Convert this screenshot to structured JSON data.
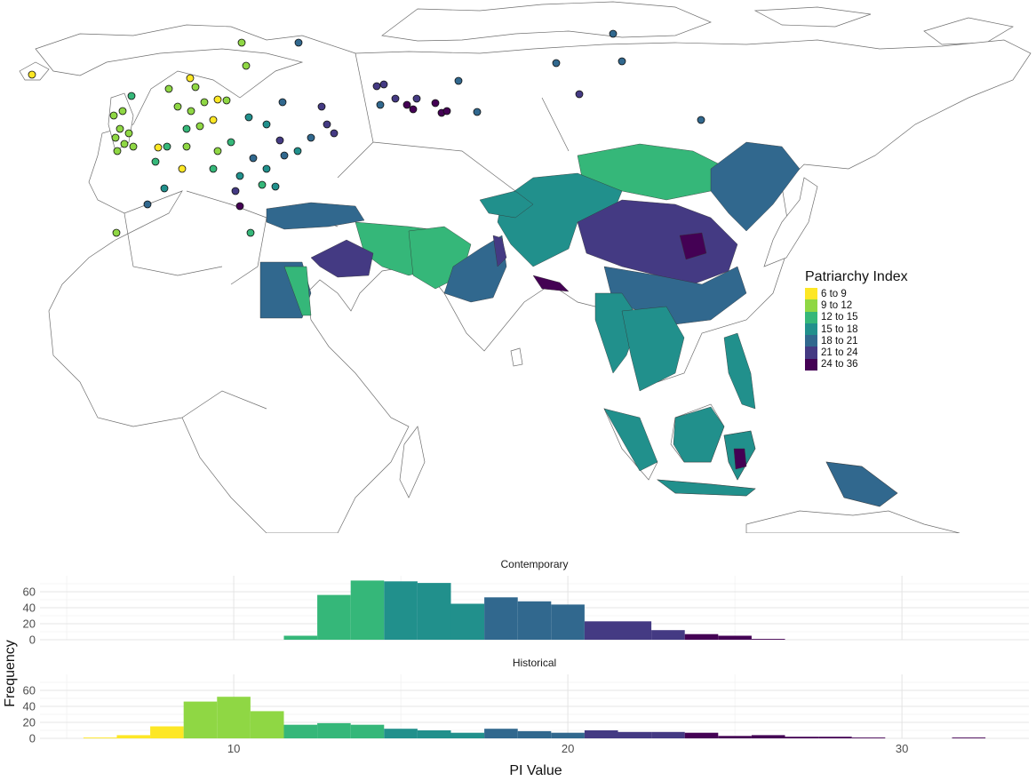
{
  "legend": {
    "title": "Patriarchy Index",
    "bins": [
      {
        "label": "6 to 9",
        "color": "#FDE725"
      },
      {
        "label": "9 to 12",
        "color": "#8FD744"
      },
      {
        "label": "12 to 15",
        "color": "#35B779"
      },
      {
        "label": "15 to 18",
        "color": "#21908C"
      },
      {
        "label": "18 to 21",
        "color": "#31688E"
      },
      {
        "label": "21 to 24",
        "color": "#443A83"
      },
      {
        "label": "24 to 36",
        "color": "#440154"
      }
    ]
  },
  "chart_data": {
    "type": "bar",
    "panels": [
      {
        "name": "Contemporary",
        "bins": [
          {
            "x0": 11.5,
            "x1": 12.5,
            "count": 5,
            "bin": 2
          },
          {
            "x0": 12.5,
            "x1": 13.5,
            "count": 56,
            "bin": 2
          },
          {
            "x0": 13.5,
            "x1": 14.5,
            "count": 74,
            "bin": 2
          },
          {
            "x0": 14.5,
            "x1": 15.5,
            "count": 73,
            "bin": 3
          },
          {
            "x0": 15.5,
            "x1": 16.5,
            "count": 71,
            "bin": 3
          },
          {
            "x0": 16.5,
            "x1": 17.5,
            "count": 45,
            "bin": 3
          },
          {
            "x0": 17.5,
            "x1": 18.5,
            "count": 53,
            "bin": 4
          },
          {
            "x0": 18.5,
            "x1": 19.5,
            "count": 48,
            "bin": 4
          },
          {
            "x0": 19.5,
            "x1": 20.5,
            "count": 44,
            "bin": 4
          },
          {
            "x0": 20.5,
            "x1": 21.5,
            "count": 23,
            "bin": 5
          },
          {
            "x0": 21.5,
            "x1": 22.5,
            "count": 23,
            "bin": 5
          },
          {
            "x0": 22.5,
            "x1": 23.5,
            "count": 12,
            "bin": 5
          },
          {
            "x0": 23.5,
            "x1": 24.5,
            "count": 7,
            "bin": 6
          },
          {
            "x0": 24.5,
            "x1": 25.5,
            "count": 5,
            "bin": 6
          },
          {
            "x0": 25.5,
            "x1": 26.5,
            "count": 1,
            "bin": 6
          }
        ]
      },
      {
        "name": "Historical",
        "bins": [
          {
            "x0": 5.5,
            "x1": 6.5,
            "count": 1,
            "bin": 0
          },
          {
            "x0": 6.5,
            "x1": 7.5,
            "count": 4,
            "bin": 0
          },
          {
            "x0": 7.5,
            "x1": 8.5,
            "count": 15,
            "bin": 0
          },
          {
            "x0": 8.5,
            "x1": 9.5,
            "count": 46,
            "bin": 1
          },
          {
            "x0": 9.5,
            "x1": 10.5,
            "count": 52,
            "bin": 1
          },
          {
            "x0": 10.5,
            "x1": 11.5,
            "count": 34,
            "bin": 1
          },
          {
            "x0": 11.5,
            "x1": 12.5,
            "count": 17,
            "bin": 2
          },
          {
            "x0": 12.5,
            "x1": 13.5,
            "count": 19,
            "bin": 2
          },
          {
            "x0": 13.5,
            "x1": 14.5,
            "count": 17,
            "bin": 2
          },
          {
            "x0": 14.5,
            "x1": 15.5,
            "count": 12,
            "bin": 3
          },
          {
            "x0": 15.5,
            "x1": 16.5,
            "count": 10,
            "bin": 3
          },
          {
            "x0": 16.5,
            "x1": 17.5,
            "count": 7,
            "bin": 3
          },
          {
            "x0": 17.5,
            "x1": 18.5,
            "count": 12,
            "bin": 4
          },
          {
            "x0": 18.5,
            "x1": 19.5,
            "count": 9,
            "bin": 4
          },
          {
            "x0": 19.5,
            "x1": 20.5,
            "count": 7,
            "bin": 4
          },
          {
            "x0": 20.5,
            "x1": 21.5,
            "count": 10,
            "bin": 5
          },
          {
            "x0": 21.5,
            "x1": 22.5,
            "count": 8,
            "bin": 5
          },
          {
            "x0": 22.5,
            "x1": 23.5,
            "count": 8,
            "bin": 5
          },
          {
            "x0": 23.5,
            "x1": 24.5,
            "count": 7,
            "bin": 6
          },
          {
            "x0": 24.5,
            "x1": 25.5,
            "count": 3,
            "bin": 6
          },
          {
            "x0": 25.5,
            "x1": 26.5,
            "count": 4,
            "bin": 6
          },
          {
            "x0": 26.5,
            "x1": 27.5,
            "count": 2,
            "bin": 6
          },
          {
            "x0": 27.5,
            "x1": 28.5,
            "count": 2,
            "bin": 6
          },
          {
            "x0": 28.5,
            "x1": 29.5,
            "count": 1,
            "bin": 6
          },
          {
            "x0": 31.5,
            "x1": 32.5,
            "count": 1,
            "bin": 6
          }
        ]
      }
    ],
    "xlabel": "PI Value",
    "ylabel": "Frequency",
    "xticks": [
      10,
      20,
      30
    ],
    "yticks": [
      0,
      20,
      40,
      60
    ],
    "xlim": [
      4.2,
      33.8
    ],
    "ylim": [
      0,
      80
    ],
    "grid": true
  }
}
